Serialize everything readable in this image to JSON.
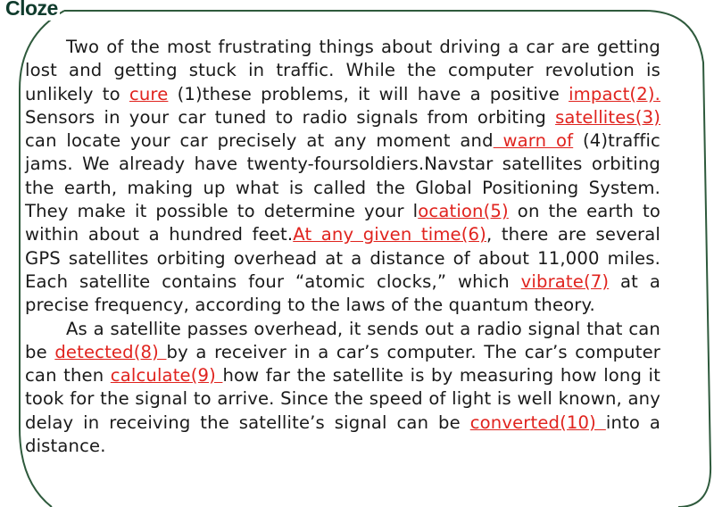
{
  "title": "Cloze",
  "colors": {
    "answer_red": "#e0231e",
    "frame_green": "#2e5a3c",
    "title_green": "#0f3b2c"
  },
  "p1": {
    "t1": "Two of the most frustrating things about driving a car are getting lost and getting stuck in traffic. While the computer revolution is unlikely to ",
    "a1": "cure",
    "t2": " (1)these problems, it will have a positive ",
    "a2": "impact(2).",
    "t3": " Sensors in your car tuned to radio signals from orbiting ",
    "a3": "satellites(3)",
    "t4": " can locate your car precisely at any moment and",
    "a4": " warn of",
    "t5": " (4)traffic jams. We already have twenty-foursoldiers.Navstar satellites orbiting the earth, making up what is called the Global Positioning System. They make it possible to determine your l",
    "a5": "ocation(5)",
    "t6": " on the earth to within about a hundred feet.",
    "a6": "At any given time(6)",
    "t7": ", there are several GPS satellites orbiting overhead at a distance of about 11,000 miles. Each satellite contains four “atomic clocks,” which ",
    "a7": "vibrate(7)",
    "t8": " at a precise frequency, according to the laws of the quantum theory."
  },
  "p2": {
    "t1": "As a satellite passes overhead, it sends out a radio signal that can be ",
    "a8": "detected(8) ",
    "t2": "by a receiver in a car’s computer. The car’s computer can then ",
    "a9": "calculate(9) ",
    "t3": "how far the satellite is by measuring how long it took for the signal to arrive. Since the speed of light is well known, any delay in receiving the satellite’s signal can be ",
    "a10": "converted(10) ",
    "t4": "into a distance."
  }
}
